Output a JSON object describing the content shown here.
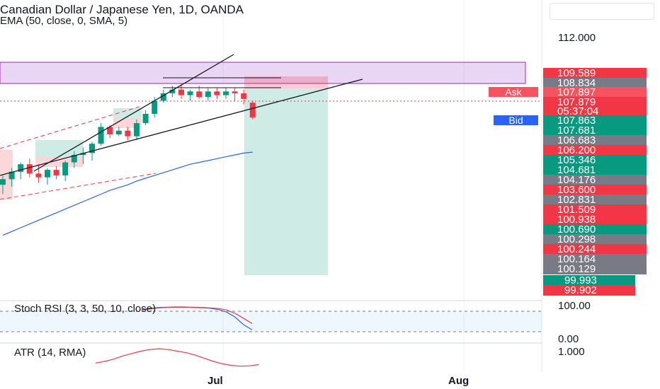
{
  "header": {
    "title": "Canadian Dollar / Japanese Yen, 1D, OANDA",
    "indicator": "EMA (50, close, 0, SMA, 5)"
  },
  "price_axis": {
    "top_label": "112.000"
  },
  "price_tags": [
    {
      "text": "109.589",
      "color": "#f23645"
    },
    {
      "text": "108.834",
      "color": "#787b86"
    },
    {
      "text": "107.897",
      "color": "#f7525f"
    },
    {
      "text": "107.879",
      "color": "#f23645"
    },
    {
      "text": "05:37:04",
      "color": "#f23645"
    },
    {
      "text": "107.863",
      "color": "#089981"
    },
    {
      "text": "107.681",
      "color": "#089981"
    },
    {
      "text": "106.683",
      "color": "#787b86"
    },
    {
      "text": "106.200",
      "color": "#f23645"
    },
    {
      "text": "105.346",
      "color": "#089981"
    },
    {
      "text": "104.681",
      "color": "#089981"
    },
    {
      "text": "104.176",
      "color": "#787b86"
    },
    {
      "text": "103.600",
      "color": "#f23645"
    },
    {
      "text": "102.831",
      "color": "#787b86"
    },
    {
      "text": "101.509",
      "color": "#f23645"
    },
    {
      "text": "100.938",
      "color": "#f23645"
    },
    {
      "text": "100.690",
      "color": "#089981"
    },
    {
      "text": "100.298",
      "color": "#787b86"
    },
    {
      "text": "100.244",
      "color": "#f23645"
    },
    {
      "text": "100.164",
      "color": "#787b86"
    },
    {
      "text": "100.129",
      "color": "#787b86"
    },
    {
      "text": "99.993",
      "color": "#089981"
    },
    {
      "text": "99.902",
      "color": "#f23645"
    }
  ],
  "ask": {
    "label": "Ask",
    "color": "#f7525f"
  },
  "bid": {
    "label": "Bid",
    "color": "#2962ff"
  },
  "stoch": {
    "label": "Stoch RSI (3, 3, 50, 10, close)",
    "top": "100.00",
    "bottom": "0.00"
  },
  "atr": {
    "label": "ATR (14, RMA)",
    "top": "1.000"
  },
  "time_axis": {
    "labels": [
      "Jul",
      "Aug"
    ]
  },
  "chart_data": {
    "type": "candlestick",
    "title": "Canadian Dollar / Japanese Yen, 1D, OANDA",
    "overlays": [
      "EMA (50, close, 0, SMA, 5)"
    ],
    "candles": [
      {
        "o": 104.3,
        "h": 104.8,
        "l": 103.8,
        "c": 104.6
      },
      {
        "o": 104.6,
        "h": 105.2,
        "l": 104.2,
        "c": 105.0
      },
      {
        "o": 105.0,
        "h": 105.5,
        "l": 104.6,
        "c": 105.4
      },
      {
        "o": 105.4,
        "h": 105.7,
        "l": 104.7,
        "c": 104.9
      },
      {
        "o": 104.9,
        "h": 105.4,
        "l": 104.4,
        "c": 104.7
      },
      {
        "o": 104.7,
        "h": 105.2,
        "l": 104.3,
        "c": 105.1
      },
      {
        "o": 105.1,
        "h": 105.3,
        "l": 104.6,
        "c": 104.8
      },
      {
        "o": 104.8,
        "h": 105.6,
        "l": 104.5,
        "c": 105.5
      },
      {
        "o": 105.5,
        "h": 106.1,
        "l": 105.2,
        "c": 105.9
      },
      {
        "o": 105.9,
        "h": 106.3,
        "l": 105.4,
        "c": 106.0
      },
      {
        "o": 106.0,
        "h": 106.6,
        "l": 105.6,
        "c": 106.5
      },
      {
        "o": 106.5,
        "h": 107.6,
        "l": 106.4,
        "c": 107.4
      },
      {
        "o": 107.4,
        "h": 107.5,
        "l": 106.8,
        "c": 107.0
      },
      {
        "o": 107.0,
        "h": 107.4,
        "l": 106.9,
        "c": 107.2
      },
      {
        "o": 107.2,
        "h": 107.4,
        "l": 106.7,
        "c": 106.9
      },
      {
        "o": 106.9,
        "h": 107.8,
        "l": 106.7,
        "c": 107.6
      },
      {
        "o": 107.6,
        "h": 108.3,
        "l": 107.5,
        "c": 108.1
      },
      {
        "o": 108.1,
        "h": 109.0,
        "l": 107.9,
        "c": 108.8
      },
      {
        "o": 108.8,
        "h": 109.4,
        "l": 108.7,
        "c": 109.2
      },
      {
        "o": 109.2,
        "h": 109.6,
        "l": 109.0,
        "c": 109.4
      },
      {
        "o": 109.4,
        "h": 109.7,
        "l": 108.9,
        "c": 109.1
      },
      {
        "o": 109.1,
        "h": 109.4,
        "l": 108.8,
        "c": 109.3
      },
      {
        "o": 109.3,
        "h": 109.6,
        "l": 108.9,
        "c": 109.0
      },
      {
        "o": 109.0,
        "h": 109.5,
        "l": 108.8,
        "c": 109.3
      },
      {
        "o": 109.3,
        "h": 109.5,
        "l": 108.9,
        "c": 109.1
      },
      {
        "o": 109.1,
        "h": 109.5,
        "l": 108.9,
        "c": 109.3
      },
      {
        "o": 109.3,
        "h": 109.5,
        "l": 108.8,
        "c": 109.2
      },
      {
        "o": 109.2,
        "h": 109.4,
        "l": 108.6,
        "c": 108.9
      },
      {
        "o": 108.7,
        "h": 108.8,
        "l": 107.8,
        "c": 107.9
      }
    ],
    "ema": [
      101.6,
      101.8,
      102.0,
      102.2,
      102.4,
      102.6,
      102.8,
      103.0,
      103.2,
      103.4,
      103.6,
      103.8,
      104.0,
      104.15,
      104.3,
      104.5,
      104.65,
      104.8,
      104.95,
      105.1,
      105.25,
      105.4,
      105.5,
      105.6,
      105.7,
      105.8,
      105.9,
      106.0,
      106.05
    ],
    "price_axis_label": "112.000",
    "stoch_rsi_k": [
      90,
      95,
      98,
      99,
      100,
      100,
      98,
      97,
      95,
      90,
      80,
      60,
      30,
      10
    ],
    "stoch_rsi_d": [
      88,
      92,
      96,
      98,
      99,
      99,
      99,
      98,
      96,
      94,
      88,
      75,
      55,
      35
    ],
    "atr": [
      0.62,
      0.66,
      0.72,
      0.8,
      0.86,
      0.92,
      0.96,
      0.98,
      0.96,
      0.92,
      0.88,
      0.82,
      0.74,
      0.66,
      0.6,
      0.56,
      0.54,
      0.55,
      0.58
    ],
    "x_ticks": [
      "Jul",
      "Aug"
    ],
    "grid": true
  }
}
